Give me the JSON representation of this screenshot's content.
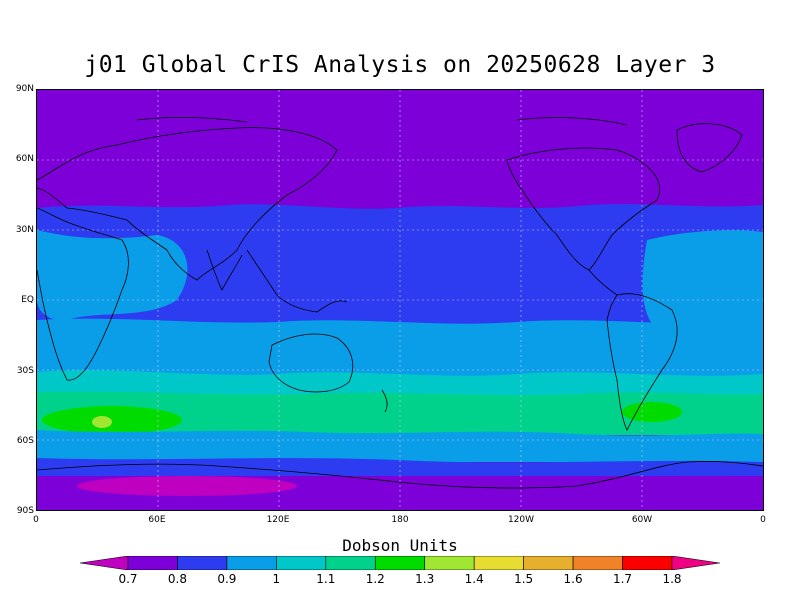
{
  "title": "j01 Global CrIS Analysis on 20250628 Layer 3",
  "map": {
    "lat_ticks": [
      "90N",
      "60N",
      "30N",
      "EQ",
      "30S",
      "60S",
      "90S"
    ],
    "lon_ticks": [
      "0",
      "60E",
      "120E",
      "180",
      "120W",
      "60W",
      "0"
    ],
    "lon_range": [
      0,
      360
    ],
    "lat_range": [
      -90,
      90
    ],
    "grid": true
  },
  "colorbar": {
    "title": "Dobson Units",
    "labels": [
      "0.7",
      "0.8",
      "0.9",
      "1",
      "1.1",
      "1.2",
      "1.3",
      "1.4",
      "1.5",
      "1.6",
      "1.7",
      "1.8"
    ],
    "colors": [
      "#c000c0",
      "#7d00d8",
      "#2d3cf0",
      "#0a9ee8",
      "#00c8c8",
      "#00d28c",
      "#00dc00",
      "#a0e632",
      "#e6dc32",
      "#e6af2d",
      "#f08228",
      "#fa0000",
      "#f00082"
    ]
  }
}
